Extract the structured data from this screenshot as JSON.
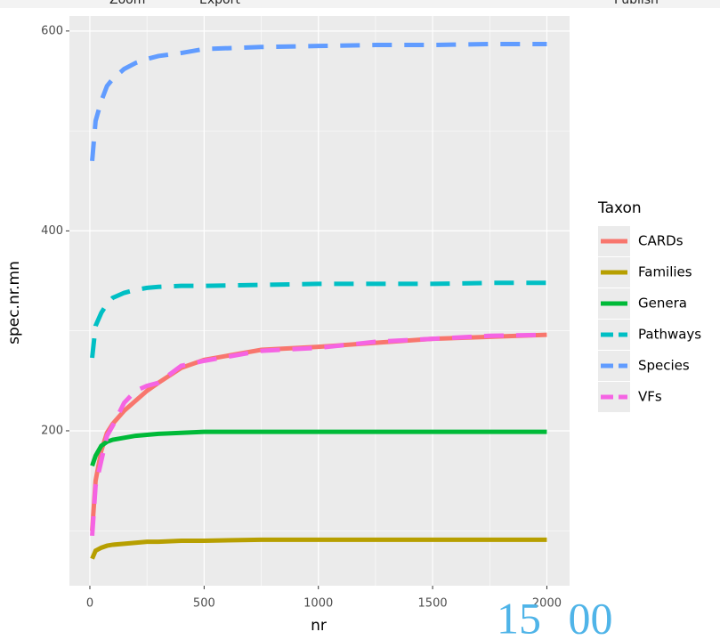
{
  "toolbar": {
    "items": [
      "Zoom",
      "Export",
      "Publish"
    ]
  },
  "overlay_text": "15 00",
  "chart_data": {
    "type": "line",
    "x_label": "nr",
    "y_label": "spec.nr.mn",
    "legend_title": "Taxon",
    "legend_position": "right",
    "x": [
      10,
      25,
      50,
      75,
      100,
      150,
      200,
      250,
      300,
      400,
      500,
      750,
      1000,
      1250,
      1500,
      1750,
      2000
    ],
    "series": [
      {
        "name": "CARDs",
        "color": "#f8766d",
        "linetype": "solid",
        "values": [
          100,
          150,
          180,
          198,
          207,
          220,
          230,
          240,
          248,
          263,
          271,
          281,
          284,
          288,
          292,
          294,
          296
        ]
      },
      {
        "name": "Families",
        "color": "#b79f00",
        "linetype": "solid",
        "values": [
          72,
          80,
          83,
          85,
          86,
          87,
          88,
          89,
          89,
          90,
          90,
          91,
          91,
          91,
          91,
          91,
          91
        ]
      },
      {
        "name": "Genera",
        "color": "#00ba38",
        "linetype": "solid",
        "values": [
          165,
          175,
          185,
          189,
          191,
          193,
          195,
          196,
          197,
          198,
          199,
          199,
          199,
          199,
          199,
          199,
          199
        ]
      },
      {
        "name": "Pathways",
        "color": "#00bfc4",
        "linetype": "dashed",
        "values": [
          273,
          305,
          318,
          327,
          333,
          338,
          341,
          343,
          344,
          345,
          345,
          346,
          347,
          347,
          347,
          348,
          348
        ]
      },
      {
        "name": "Species",
        "color": "#619cff",
        "linetype": "dashed",
        "values": [
          470,
          510,
          530,
          545,
          552,
          562,
          568,
          572,
          575,
          578,
          582,
          584,
          585,
          586,
          586,
          587,
          587
        ]
      },
      {
        "name": "VFs",
        "color": "#f564e3",
        "linetype": "dashed",
        "values": [
          95,
          145,
          170,
          195,
          205,
          228,
          240,
          245,
          248,
          265,
          270,
          280,
          283,
          289,
          292,
          295,
          296
        ]
      }
    ],
    "xlim": [
      -89.5,
      2099.5
    ],
    "ylim": [
      45,
      615
    ],
    "xticks": [
      0,
      500,
      1000,
      1500,
      2000
    ],
    "yticks": [
      200,
      400,
      600
    ],
    "xminor": [
      250,
      750,
      1250,
      1750
    ],
    "yminor": [
      100,
      300,
      500
    ],
    "grid": true
  }
}
